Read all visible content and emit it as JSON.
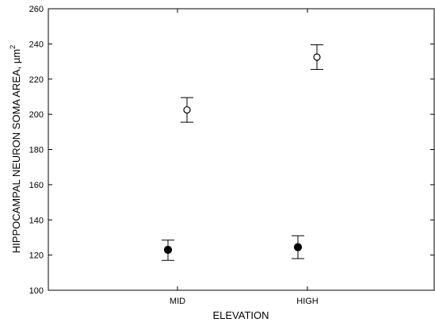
{
  "chart_data": {
    "type": "scatter",
    "title": "",
    "xlabel": "ELEVATION",
    "ylabel": "HIPPOCAMPAL NEURON SOMA AREA, µm",
    "ylabel_superscript": "2",
    "categories": [
      "MID",
      "HIGH"
    ],
    "ylim": [
      100,
      260
    ],
    "yticks": [
      "100",
      "120",
      "140",
      "160",
      "180",
      "200",
      "220",
      "240",
      "260"
    ],
    "grid": false,
    "legend": "none",
    "series": [
      {
        "marker": "open-circle",
        "values": [
          202.5,
          232.5
        ],
        "error_low": [
          195.5,
          225.5
        ],
        "error_high": [
          209.5,
          239.5
        ]
      },
      {
        "marker": "filled-circle",
        "values": [
          123,
          124.5
        ],
        "error_low": [
          117,
          118
        ],
        "error_high": [
          128.5,
          131
        ]
      }
    ]
  }
}
